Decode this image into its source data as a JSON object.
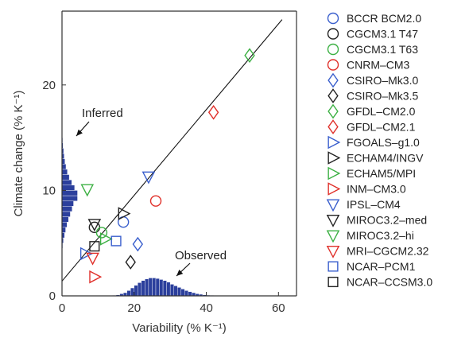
{
  "chart_data": {
    "type": "scatter",
    "xlabel": "Variability (% K⁻¹)",
    "ylabel": "Climate change (% K⁻¹)",
    "xlim": [
      0,
      65
    ],
    "ylim": [
      0,
      27
    ],
    "xticks": [
      0,
      20,
      40,
      60
    ],
    "yticks": [
      0,
      10,
      20
    ],
    "fit_line": {
      "x": [
        0,
        61
      ],
      "y": [
        1.4,
        26.2
      ]
    },
    "series": [
      {
        "name": "BCCR BCM2.0",
        "marker": "circle",
        "color": "#3a5fcd",
        "x": [
          17.0
        ],
        "y": [
          7.0
        ]
      },
      {
        "name": "CGCM3.1 T47",
        "marker": "circle",
        "color": "#222222",
        "x": [
          9.0
        ],
        "y": [
          6.5
        ]
      },
      {
        "name": "CGCM3.1 T63",
        "marker": "circle",
        "color": "#3cb043",
        "x": [
          11.0
        ],
        "y": [
          6.0
        ]
      },
      {
        "name": "CNRM–CM3",
        "marker": "circle",
        "color": "#e0302a",
        "x": [
          26.0
        ],
        "y": [
          9.0
        ]
      },
      {
        "name": "CSIRO–Mk3.0",
        "marker": "diamond",
        "color": "#3a5fcd",
        "x": [
          21.0
        ],
        "y": [
          4.9
        ]
      },
      {
        "name": "CSIRO–Mk3.5",
        "marker": "diamond",
        "color": "#222222",
        "x": [
          19.0
        ],
        "y": [
          3.2
        ]
      },
      {
        "name": "GFDL–CM2.0",
        "marker": "diamond",
        "color": "#3cb043",
        "x": [
          52.0
        ],
        "y": [
          22.8
        ]
      },
      {
        "name": "GFDL–CM2.1",
        "marker": "diamond",
        "color": "#e0302a",
        "x": [
          42.0
        ],
        "y": [
          17.4
        ]
      },
      {
        "name": "FGOALS–g1.0",
        "marker": "tri-right",
        "color": "#3a5fcd",
        "x": [
          6.5
        ],
        "y": [
          4.0
        ]
      },
      {
        "name": "ECHAM4/INGV",
        "marker": "tri-right",
        "color": "#222222",
        "x": [
          17.0
        ],
        "y": [
          7.8
        ]
      },
      {
        "name": "ECHAM5/MPI",
        "marker": "tri-right",
        "color": "#3cb043",
        "x": [
          12.0
        ],
        "y": [
          5.4
        ]
      },
      {
        "name": "INM–CM3.0",
        "marker": "tri-right",
        "color": "#e0302a",
        "x": [
          9.0
        ],
        "y": [
          1.8
        ]
      },
      {
        "name": "IPSL–CM4",
        "marker": "tri-down",
        "color": "#3a5fcd",
        "x": [
          24.0
        ],
        "y": [
          11.3
        ]
      },
      {
        "name": "MIROC3.2–med",
        "marker": "tri-down",
        "color": "#222222",
        "x": [
          9.0
        ],
        "y": [
          6.8
        ]
      },
      {
        "name": "MIROC3.2–hi",
        "marker": "tri-down",
        "color": "#3cb043",
        "x": [
          7.0
        ],
        "y": [
          10.1
        ]
      },
      {
        "name": "MRI–CGCM2.32",
        "marker": "tri-down",
        "color": "#e0302a",
        "x": [
          8.5
        ],
        "y": [
          3.6
        ]
      },
      {
        "name": "NCAR–PCM1",
        "marker": "square",
        "color": "#3a5fcd",
        "x": [
          15.0
        ],
        "y": [
          5.2
        ]
      },
      {
        "name": "NCAR–CCSM3.0",
        "marker": "square",
        "color": "#222222",
        "x": [
          9.0
        ],
        "y": [
          4.7
        ]
      }
    ],
    "histogram_inferred": {
      "label": "Inferred",
      "orientation": "horizontal",
      "bins_y": [
        4.5,
        5,
        5.5,
        6,
        6.5,
        7,
        7.5,
        8,
        8.5,
        9,
        9.5,
        10,
        10.5,
        11,
        11.5,
        12,
        12.5,
        13,
        13.5,
        14,
        14.5,
        15
      ],
      "widths_x": [
        0.2,
        0.4,
        0.7,
        1.0,
        1.4,
        1.8,
        2.3,
        2.8,
        3.2,
        4.3,
        4.3,
        3.5,
        2.7,
        2.0,
        1.5,
        1.1,
        0.8,
        0.6,
        0.45,
        0.3,
        0.2,
        0.1
      ]
    },
    "histogram_observed": {
      "label": "Observed",
      "orientation": "vertical",
      "bins_x": [
        14,
        15,
        16,
        17,
        18,
        19,
        20,
        21,
        22,
        23,
        24,
        25,
        26,
        27,
        28,
        29,
        30,
        31,
        32,
        33,
        34,
        35,
        36,
        37,
        38,
        39,
        40,
        41,
        42,
        43
      ],
      "heights_y": [
        0.05,
        0.1,
        0.2,
        0.3,
        0.5,
        0.75,
        1.0,
        1.25,
        1.45,
        1.6,
        1.7,
        1.7,
        1.65,
        1.55,
        1.45,
        1.3,
        1.1,
        0.95,
        0.8,
        0.65,
        0.5,
        0.4,
        0.3,
        0.2,
        0.15,
        0.1,
        0.07,
        0.05,
        0.03,
        0.02
      ]
    },
    "annotations": {
      "inferred": "Inferred",
      "observed": "Observed"
    },
    "colors": {
      "bars": "#2b3f9c",
      "line": "#111111",
      "axis": "#333333"
    },
    "legend_position": "right"
  }
}
